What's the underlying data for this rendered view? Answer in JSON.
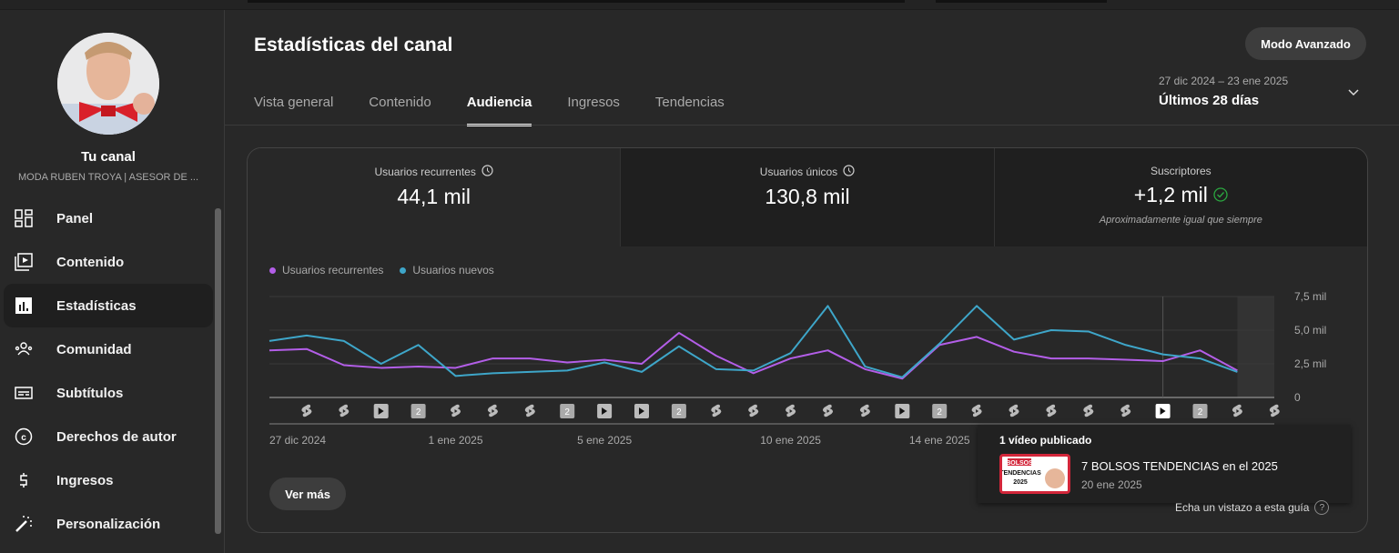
{
  "sidebar": {
    "channel_title": "Tu canal",
    "channel_name": "MODA RUBEN TROYA | ASESOR DE ...",
    "items": [
      {
        "label": "Panel",
        "icon": "dashboard-icon"
      },
      {
        "label": "Contenido",
        "icon": "content-icon"
      },
      {
        "label": "Estadísticas",
        "icon": "analytics-icon",
        "active": true
      },
      {
        "label": "Comunidad",
        "icon": "community-icon"
      },
      {
        "label": "Subtítulos",
        "icon": "subtitles-icon"
      },
      {
        "label": "Derechos de autor",
        "icon": "copyright-icon"
      },
      {
        "label": "Ingresos",
        "icon": "dollar-icon"
      },
      {
        "label": "Personalización",
        "icon": "magic-wand-icon"
      }
    ]
  },
  "header": {
    "title": "Estadísticas del canal",
    "advanced_mode": "Modo Avanzado",
    "tabs": [
      "Vista general",
      "Contenido",
      "Audiencia",
      "Ingresos",
      "Tendencias"
    ],
    "active_tab": 2,
    "date_range": "27 dic 2024 – 23 ene 2025",
    "period": "Últimos 28 días"
  },
  "metrics": [
    {
      "label": "Usuarios recurrentes",
      "value": "44,1 mil"
    },
    {
      "label": "Usuarios únicos",
      "value": "130,8 mil"
    },
    {
      "label": "Suscriptores",
      "value": "+1,2 mil",
      "note": "Aproximadamente igual que siempre"
    }
  ],
  "chart_data": {
    "type": "line",
    "x": [
      "27 dic",
      "28 dic",
      "29 dic",
      "30 dic",
      "31 dic",
      "1 ene",
      "2 ene",
      "3 ene",
      "4 ene",
      "5 ene",
      "6 ene",
      "7 ene",
      "8 ene",
      "9 ene",
      "10 ene",
      "11 ene",
      "12 ene",
      "13 ene",
      "14 ene",
      "15 ene",
      "16 ene",
      "17 ene",
      "18 ene",
      "19 ene",
      "20 ene",
      "21 ene",
      "22 ene"
    ],
    "x_tick_labels": [
      {
        "index": 0,
        "label": "27 dic 2024"
      },
      {
        "index": 5,
        "label": "1 ene 2025"
      },
      {
        "index": 9,
        "label": "5 ene 2025"
      },
      {
        "index": 14,
        "label": "10 ene 2025"
      },
      {
        "index": 18,
        "label": "14 ene 2025"
      }
    ],
    "y_ticks": [
      {
        "v": 0,
        "label": "0"
      },
      {
        "v": 2.5,
        "label": "2,5 mil"
      },
      {
        "v": 5,
        "label": "5,0 mil"
      },
      {
        "v": 7.5,
        "label": "7,5 mil"
      }
    ],
    "ylim": [
      0,
      7.5
    ],
    "yunit": "mil",
    "series": [
      {
        "name": "Usuarios recurrentes",
        "color": "#b35ee8",
        "values": [
          3.5,
          3.6,
          2.4,
          2.2,
          2.3,
          2.2,
          2.9,
          2.9,
          2.6,
          2.8,
          2.5,
          4.8,
          3.1,
          1.8,
          2.9,
          3.5,
          2.1,
          1.4,
          3.9,
          4.5,
          3.4,
          2.9,
          2.9,
          2.8,
          2.7,
          3.5,
          2.0
        ]
      },
      {
        "name": "Usuarios nuevos",
        "color": "#3ea6c9",
        "values": [
          4.2,
          4.6,
          4.2,
          2.5,
          3.9,
          1.6,
          1.8,
          1.9,
          2.0,
          2.6,
          1.9,
          3.8,
          2.1,
          2.0,
          3.3,
          6.8,
          2.3,
          1.5,
          4.0,
          6.8,
          4.3,
          5.0,
          4.9,
          3.9,
          3.2,
          2.9,
          1.9
        ]
      }
    ],
    "highlight_index": 24,
    "publications": [
      "short",
      "short",
      "video",
      "2",
      "short",
      "short",
      "short",
      "2",
      "video",
      "video",
      "2",
      "short",
      "short",
      "short",
      "short",
      "short",
      "video",
      "2",
      "short",
      "short",
      "short",
      "short",
      "short",
      "video",
      "2",
      "short",
      "short"
    ],
    "active_publication": 23
  },
  "more_button": "Ver más",
  "popup": {
    "heading": "1 vídeo publicado",
    "video_title": "7 BOLSOS TENDENCIAS en el 2025",
    "video_date": "20 ene 2025",
    "thumb_text": [
      "BOLSOS",
      "TENDENCIAS",
      "2025"
    ]
  },
  "guide_link": "Echa un vistazo a esta guía",
  "guide_icon": "?"
}
